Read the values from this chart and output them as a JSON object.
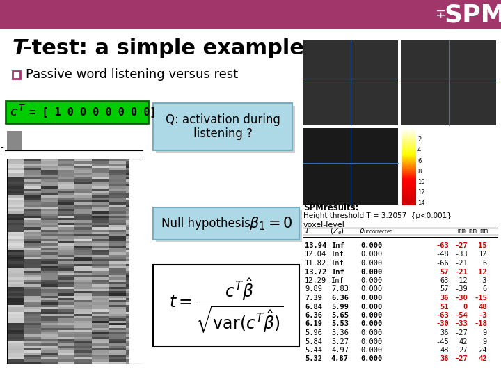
{
  "header_bg": "#A0366A",
  "slide_bg": "#FFFFFF",
  "green_box_bg": "#00CC00",
  "green_box_edge": "#006600",
  "blue_box_bg": "#ADD8E6",
  "blue_box_edge": "#7AACBF",
  "q_box_text": "Q: activation during\nlistening ?",
  "null_hyp_prefix": "Null hypothesis:",
  "spm_results_title": "SPMresults:",
  "threshold_text": "Height threshold T = 3.2057  {p<0.001}",
  "voxel_level_text": "voxel-level",
  "red_coord_color": "#CC0000",
  "bullet_color": "#A0366A",
  "table_data": [
    [
      "13.94",
      "Inf",
      "0.000",
      "-63",
      "-27",
      "15",
      true
    ],
    [
      "12.04",
      "Inf",
      "0.000",
      "-48",
      "-33",
      "12",
      false
    ],
    [
      "11.82",
      "Inf",
      "0.000",
      "-66",
      "-21",
      "6",
      false
    ],
    [
      "13.72",
      "Inf",
      "0.000",
      "57",
      "-21",
      "12",
      true
    ],
    [
      "12.29",
      "Inf",
      "0.000",
      "63",
      "-12",
      "-3",
      false
    ],
    [
      "9.89",
      "7.83",
      "0.000",
      "57",
      "-39",
      "6",
      false
    ],
    [
      "7.39",
      "6.36",
      "0.000",
      "36",
      "-30",
      "-15",
      true
    ],
    [
      "6.84",
      "5.99",
      "0.000",
      "51",
      "0",
      "48",
      true
    ],
    [
      "6.36",
      "5.65",
      "0.000",
      "-63",
      "-54",
      "-3",
      true
    ],
    [
      "6.19",
      "5.53",
      "0.000",
      "-30",
      "-33",
      "-18",
      true
    ],
    [
      "5.96",
      "5.36",
      "0.000",
      "36",
      "-27",
      "9",
      false
    ],
    [
      "5.84",
      "5.27",
      "0.000",
      "-45",
      "42",
      "9",
      false
    ],
    [
      "5.44",
      "4.97",
      "0.000",
      "48",
      "27",
      "24",
      false
    ],
    [
      "5.32",
      "4.87",
      "0.000",
      "36",
      "-27",
      "42",
      true
    ]
  ]
}
